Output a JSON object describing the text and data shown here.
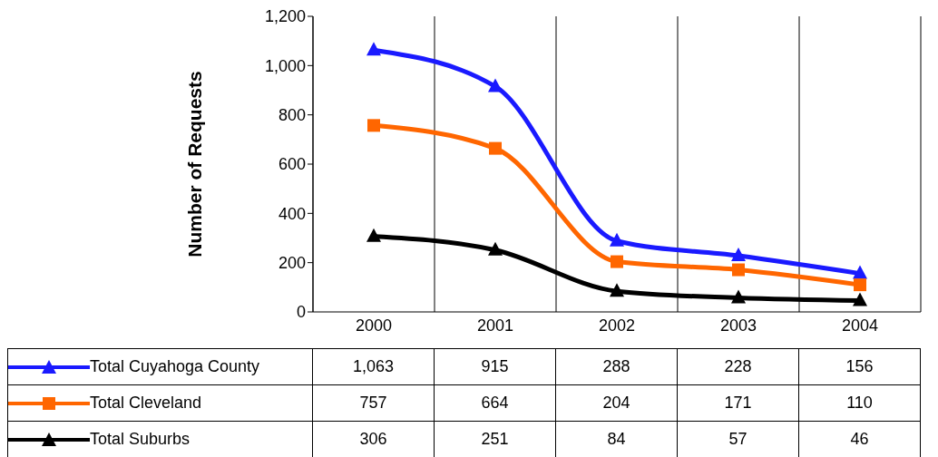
{
  "chart_data": {
    "type": "line",
    "ylabel": "Number of Requests",
    "categories": [
      "2000",
      "2001",
      "2002",
      "2003",
      "2004"
    ],
    "series": [
      {
        "name": "Total Cuyahoga County",
        "color": "#1a1aff",
        "marker": "triangle",
        "values": [
          1063,
          915,
          288,
          228,
          156
        ],
        "value_labels": [
          "1,063",
          "915",
          "288",
          "228",
          "156"
        ]
      },
      {
        "name": "Total Cleveland",
        "color": "#ff6600",
        "marker": "square",
        "values": [
          757,
          664,
          204,
          171,
          110
        ],
        "value_labels": [
          "757",
          "664",
          "204",
          "171",
          "110"
        ]
      },
      {
        "name": "Total Suburbs",
        "color": "#000000",
        "marker": "triangle",
        "values": [
          306,
          251,
          84,
          57,
          46
        ],
        "value_labels": [
          "306",
          "251",
          "84",
          "57",
          "46"
        ]
      }
    ],
    "ylim": [
      0,
      1200
    ],
    "yticks": [
      0,
      200,
      400,
      600,
      800,
      {
        "value": 1000,
        "label": "1,000"
      },
      {
        "value": 1200,
        "label": "1,200"
      }
    ],
    "grid": "x",
    "legend": "bottom"
  }
}
